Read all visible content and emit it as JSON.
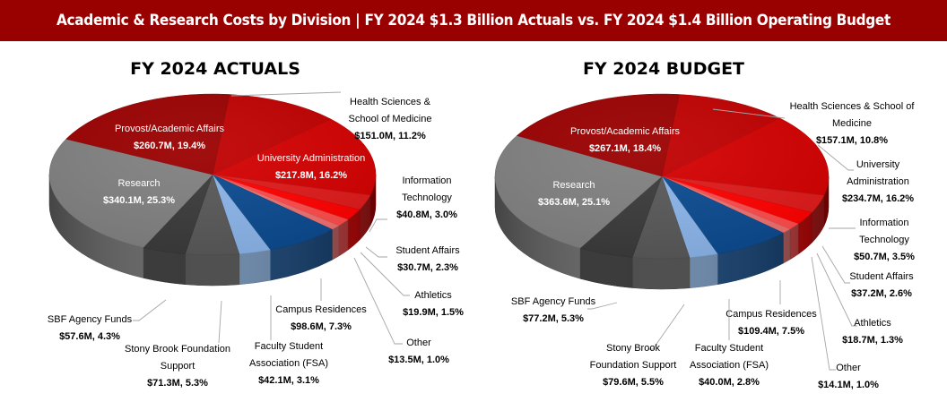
{
  "header": {
    "title": "Academic & Research Costs by Division | FY 2024 $1.3 Billion Actuals vs. FY 2024 $1.4 Billion Operating Budget"
  },
  "colors": {
    "banner": "#990000",
    "provost": "#9b0000",
    "health_sciences": "#c00000",
    "university_admin": "#d40000",
    "information_technology": "#e01a1a",
    "student_affairs": "#ff0000",
    "athletics": "#ff4b4b",
    "other": "#f07070",
    "campus_residences": "#0b4a8f",
    "fsa": "#8ab4e8",
    "sb_foundation": "#585858",
    "sbf_agency": "#3a3a3a",
    "research": "#808080"
  },
  "chart_data": [
    {
      "type": "pie",
      "title": "FY 2024 ACTUALS",
      "unit": "$M",
      "slices": [
        {
          "key": "health_sciences",
          "label": "Health Sciences & School of Medicine",
          "label_lines": [
            "Health Sciences &",
            "School of Medicine"
          ],
          "value": 151.0,
          "value_text": "$151.0M, 11.2%",
          "percent": 11.2
        },
        {
          "key": "university_admin",
          "label": "University Administration",
          "label_lines": [
            "University Administration"
          ],
          "value": 217.8,
          "value_text": "$217.8M, 16.2%",
          "percent": 16.2
        },
        {
          "key": "information_technology",
          "label": "Information Technology",
          "label_lines": [
            "Information",
            "Technology"
          ],
          "value": 40.8,
          "value_text": "$40.8M, 3.0%",
          "percent": 3.0
        },
        {
          "key": "student_affairs",
          "label": "Student Affairs",
          "label_lines": [
            "Student Affairs"
          ],
          "value": 30.7,
          "value_text": "$30.7M, 2.3%",
          "percent": 2.3
        },
        {
          "key": "athletics",
          "label": "Athletics",
          "label_lines": [
            "Athletics"
          ],
          "value": 19.9,
          "value_text": "$19.9M, 1.5%",
          "percent": 1.5
        },
        {
          "key": "other",
          "label": "Other",
          "label_lines": [
            "Other"
          ],
          "value": 13.5,
          "value_text": "$13.5M, 1.0%",
          "percent": 1.0
        },
        {
          "key": "campus_residences",
          "label": "Campus Residences",
          "label_lines": [
            "Campus Residences"
          ],
          "value": 98.6,
          "value_text": "$98.6M, 7.3%",
          "percent": 7.3
        },
        {
          "key": "fsa",
          "label": "Faculty Student Association (FSA)",
          "label_lines": [
            "Faculty Student",
            "Association (FSA)"
          ],
          "value": 42.1,
          "value_text": "$42.1M, 3.1%",
          "percent": 3.1
        },
        {
          "key": "sb_foundation",
          "label": "Stony Brook Foundation Support",
          "label_lines": [
            "Stony Brook Foundation",
            "Support"
          ],
          "value": 71.3,
          "value_text": "$71.3M, 5.3%",
          "percent": 5.3
        },
        {
          "key": "sbf_agency",
          "label": "SBF Agency Funds",
          "label_lines": [
            "SBF Agency Funds"
          ],
          "value": 57.6,
          "value_text": "$57.6M, 4.3%",
          "percent": 4.3
        },
        {
          "key": "research",
          "label": "Research",
          "label_lines": [
            "Research"
          ],
          "value": 340.1,
          "value_text": "$340.1M, 25.3%",
          "percent": 25.3
        },
        {
          "key": "provost",
          "label": "Provost/Academic Affairs",
          "label_lines": [
            "Provost/Academic Affairs"
          ],
          "value": 260.7,
          "value_text": "$260.7M, 19.4%",
          "percent": 19.4
        }
      ]
    },
    {
      "type": "pie",
      "title": "FY 2024 BUDGET",
      "unit": "$M",
      "slices": [
        {
          "key": "health_sciences",
          "label": "Health Sciences & School of Medicine",
          "label_lines": [
            "Health Sciences & School of",
            "Medicine"
          ],
          "value": 157.1,
          "value_text": "$157.1M, 10.8%",
          "percent": 10.8
        },
        {
          "key": "university_admin",
          "label": "University Administration",
          "label_lines": [
            "University",
            "Administration"
          ],
          "value": 234.7,
          "value_text": "$234.7M, 16.2%",
          "percent": 16.2
        },
        {
          "key": "information_technology",
          "label": "Information Technology",
          "label_lines": [
            "Information",
            "Technology"
          ],
          "value": 50.7,
          "value_text": "$50.7M, 3.5%",
          "percent": 3.5
        },
        {
          "key": "student_affairs",
          "label": "Student Affairs",
          "label_lines": [
            "Student Affairs"
          ],
          "value": 37.2,
          "value_text": "$37.2M, 2.6%",
          "percent": 2.6
        },
        {
          "key": "athletics",
          "label": "Athletics",
          "label_lines": [
            "Athletics"
          ],
          "value": 18.7,
          "value_text": "$18.7M, 1.3%",
          "percent": 1.3
        },
        {
          "key": "other",
          "label": "Other",
          "label_lines": [
            "Other"
          ],
          "value": 14.1,
          "value_text": "$14.1M, 1.0%",
          "percent": 1.0
        },
        {
          "key": "campus_residences",
          "label": "Campus Residences",
          "label_lines": [
            "Campus Residences"
          ],
          "value": 109.4,
          "value_text": "$109.4M, 7.5%",
          "percent": 7.5
        },
        {
          "key": "fsa",
          "label": "Faculty Student Association (FSA)",
          "label_lines": [
            "Faculty Student",
            "Association (FSA)"
          ],
          "value": 40.0,
          "value_text": "$40.0M, 2.8%",
          "percent": 2.8
        },
        {
          "key": "sb_foundation",
          "label": "Stony Brook Foundation Support",
          "label_lines": [
            "Stony Brook",
            "Foundation Support"
          ],
          "value": 79.6,
          "value_text": "$79.6M, 5.5%",
          "percent": 5.5
        },
        {
          "key": "sbf_agency",
          "label": "SBF Agency Funds",
          "label_lines": [
            "SBF Agency Funds"
          ],
          "value": 77.2,
          "value_text": "$77.2M, 5.3%",
          "percent": 5.3
        },
        {
          "key": "research",
          "label": "Research",
          "label_lines": [
            "Research"
          ],
          "value": 363.6,
          "value_text": "$363.6M, 25.1%",
          "percent": 25.1
        },
        {
          "key": "provost",
          "label": "Provost/Academic Affairs",
          "label_lines": [
            "Provost/Academic Affairs"
          ],
          "value": 267.1,
          "value_text": "$267.1M, 18.4%",
          "percent": 18.4
        }
      ]
    }
  ]
}
